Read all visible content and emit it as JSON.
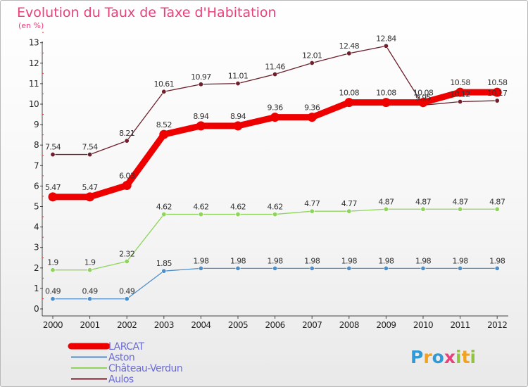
{
  "chart_data": {
    "type": "line",
    "title": "Evolution du Taux de Taxe d'Habitation",
    "subtitle": "(en %)",
    "x": [
      "2000",
      "2001",
      "2002",
      "2003",
      "2004",
      "2005",
      "2006",
      "2007",
      "2008",
      "2009",
      "2010",
      "2011",
      "2012"
    ],
    "ylim": [
      0,
      13
    ],
    "yticks": [
      0,
      1,
      2,
      3,
      4,
      5,
      6,
      7,
      8,
      9,
      10,
      11,
      12,
      13
    ],
    "grid": false,
    "legend_position": "bottom-left",
    "series": [
      {
        "name": "LARCAT",
        "color": "#ee0000",
        "values": [
          5.47,
          5.47,
          6.03,
          8.52,
          8.94,
          8.94,
          9.36,
          9.36,
          10.08,
          10.08,
          10.08,
          10.58,
          10.58
        ],
        "labels": [
          "5.47",
          "5.47",
          "6.03",
          "8.52",
          "8.94",
          "8.94",
          "9.36",
          "9.36",
          "10.08",
          "10.08",
          "10.08",
          "10.58",
          "10.58"
        ]
      },
      {
        "name": "Aston",
        "color": "#4f8fc9",
        "values": [
          0.49,
          0.49,
          0.49,
          1.85,
          1.98,
          1.98,
          1.98,
          1.98,
          1.98,
          1.98,
          1.98,
          1.98,
          1.98
        ],
        "labels": [
          "0.49",
          "0.49",
          "0.49",
          "1.85",
          "1.98",
          "1.98",
          "1.98",
          "1.98",
          "1.98",
          "1.98",
          "1.98",
          "1.98",
          "1.98"
        ]
      },
      {
        "name": "Château-Verdun",
        "color": "#8fd45a",
        "values": [
          1.9,
          1.9,
          2.32,
          4.62,
          4.62,
          4.62,
          4.62,
          4.77,
          4.77,
          4.87,
          4.87,
          4.87,
          4.87
        ],
        "labels": [
          "1.9",
          "1.9",
          "2.32",
          "4.62",
          "4.62",
          "4.62",
          "4.62",
          "4.77",
          "4.77",
          "4.87",
          "4.87",
          "4.87",
          "4.87"
        ]
      },
      {
        "name": "Aulos",
        "color": "#6e1f2b",
        "values": [
          7.54,
          7.54,
          8.21,
          10.61,
          10.97,
          11.01,
          11.46,
          12.01,
          12.48,
          12.84,
          9.95,
          10.12,
          10.17
        ],
        "labels": [
          "7.54",
          "7.54",
          "8.21",
          "10.61",
          "10.97",
          "11.01",
          "11.46",
          "12.01",
          "12.48",
          "12.84",
          "9.95",
          "10.12",
          "10.17"
        ]
      }
    ]
  },
  "logo": {
    "text": "Proxiti",
    "letters": [
      "P",
      "r",
      "o",
      "x",
      "i",
      "t",
      "i"
    ],
    "colors": [
      "#2e9ad8",
      "#f2a21d",
      "#2e9ad8",
      "#e8407a",
      "#8fc440",
      "#f2a21d",
      "#8fc440"
    ]
  }
}
